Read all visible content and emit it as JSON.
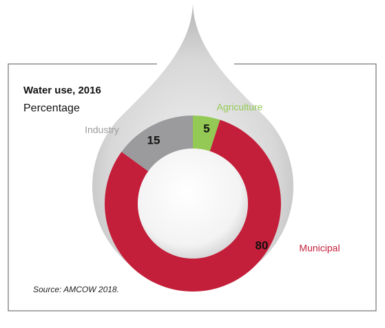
{
  "chart_data": {
    "type": "donut",
    "title": "Water use, 2016",
    "subtitle": "Percentage",
    "categories": [
      "Agriculture",
      "Municipal",
      "Industry"
    ],
    "values": [
      5,
      80,
      15
    ],
    "colors": [
      "#93c954",
      "#c41f3a",
      "#9b9b9d"
    ],
    "source": "Source: AMCOW 2018."
  }
}
